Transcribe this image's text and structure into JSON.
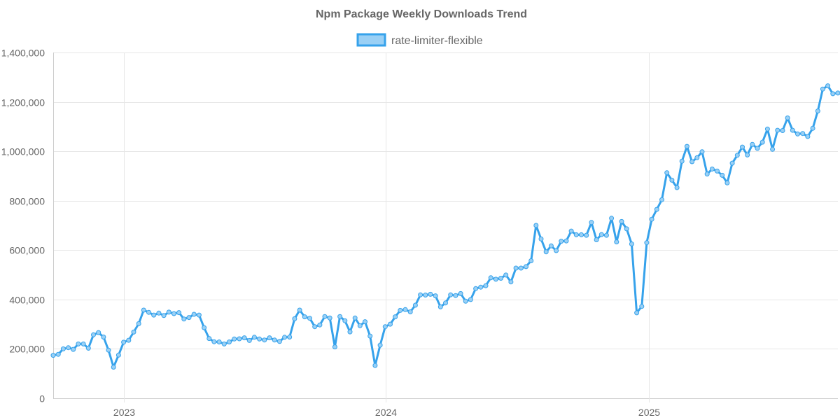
{
  "chart_data": {
    "type": "line",
    "title": "Npm Package Weekly Downloads Trend",
    "xlabel": "",
    "ylabel": "",
    "ylim": [
      0,
      1400000
    ],
    "y_ticks": [
      0,
      200000,
      400000,
      600000,
      800000,
      1000000,
      1200000,
      1400000
    ],
    "y_tick_labels": [
      "0",
      "200,000",
      "400,000",
      "600,000",
      "800,000",
      "1,000,000",
      "1,200,000",
      "1,400,000"
    ],
    "x_range": [
      "2022-09-25",
      "2025-09-21"
    ],
    "x_ticks": [
      "2023-01-01",
      "2024-01-01",
      "2025-01-01"
    ],
    "x_tick_labels": [
      "2023",
      "2024",
      "2025"
    ],
    "grid": true,
    "legend_position": "top-center",
    "series": [
      {
        "name": "rate-limiter-flexible",
        "color": "#36a2eb",
        "fill_color": "#9ad0f5",
        "points": [
          [
            "2022-09-25",
            174000
          ],
          [
            "2022-10-02",
            178000
          ],
          [
            "2022-10-09",
            200000
          ],
          [
            "2022-10-16",
            205000
          ],
          [
            "2022-10-23",
            198000
          ],
          [
            "2022-10-30",
            220000
          ],
          [
            "2022-11-06",
            220000
          ],
          [
            "2022-11-13",
            203000
          ],
          [
            "2022-11-20",
            257000
          ],
          [
            "2022-11-27",
            266000
          ],
          [
            "2022-12-04",
            248000
          ],
          [
            "2022-12-11",
            195000
          ],
          [
            "2022-12-18",
            126000
          ],
          [
            "2022-12-25",
            175000
          ],
          [
            "2023-01-01",
            227000
          ],
          [
            "2023-01-08",
            235000
          ],
          [
            "2023-01-15",
            268000
          ],
          [
            "2023-01-22",
            302000
          ],
          [
            "2023-01-29",
            357000
          ],
          [
            "2023-02-05",
            348000
          ],
          [
            "2023-02-12",
            337000
          ],
          [
            "2023-02-19",
            345000
          ],
          [
            "2023-02-26",
            335000
          ],
          [
            "2023-03-05",
            349000
          ],
          [
            "2023-03-12",
            343000
          ],
          [
            "2023-03-19",
            347000
          ],
          [
            "2023-03-26",
            321000
          ],
          [
            "2023-04-02",
            327000
          ],
          [
            "2023-04-09",
            340000
          ],
          [
            "2023-04-16",
            337000
          ],
          [
            "2023-04-23",
            286000
          ],
          [
            "2023-04-30",
            242000
          ],
          [
            "2023-05-07",
            229000
          ],
          [
            "2023-05-14",
            228000
          ],
          [
            "2023-05-21",
            220000
          ],
          [
            "2023-05-28",
            228000
          ],
          [
            "2023-06-04",
            240000
          ],
          [
            "2023-06-11",
            241000
          ],
          [
            "2023-06-18",
            245000
          ],
          [
            "2023-06-25",
            234000
          ],
          [
            "2023-07-02",
            247000
          ],
          [
            "2023-07-09",
            240000
          ],
          [
            "2023-07-16",
            236000
          ],
          [
            "2023-07-23",
            245000
          ],
          [
            "2023-07-30",
            236000
          ],
          [
            "2023-08-06",
            230000
          ],
          [
            "2023-08-13",
            247000
          ],
          [
            "2023-08-20",
            248000
          ],
          [
            "2023-08-27",
            322000
          ],
          [
            "2023-09-03",
            357000
          ],
          [
            "2023-09-10",
            330000
          ],
          [
            "2023-09-17",
            324000
          ],
          [
            "2023-09-24",
            290000
          ],
          [
            "2023-10-01",
            297000
          ],
          [
            "2023-10-08",
            331000
          ],
          [
            "2023-10-15",
            325000
          ],
          [
            "2023-10-22",
            208000
          ],
          [
            "2023-10-29",
            331000
          ],
          [
            "2023-11-05",
            314000
          ],
          [
            "2023-11-12",
            269000
          ],
          [
            "2023-11-19",
            325000
          ],
          [
            "2023-11-26",
            294000
          ],
          [
            "2023-12-03",
            310000
          ],
          [
            "2023-12-10",
            252000
          ],
          [
            "2023-12-17",
            133000
          ],
          [
            "2023-12-24",
            215000
          ],
          [
            "2023-12-31",
            290000
          ],
          [
            "2024-01-07",
            300000
          ],
          [
            "2024-01-14",
            330000
          ],
          [
            "2024-01-21",
            356000
          ],
          [
            "2024-01-28",
            359000
          ],
          [
            "2024-02-04",
            350000
          ],
          [
            "2024-02-11",
            377000
          ],
          [
            "2024-02-18",
            419000
          ],
          [
            "2024-02-25",
            418000
          ],
          [
            "2024-03-03",
            421000
          ],
          [
            "2024-03-10",
            415000
          ],
          [
            "2024-03-17",
            370000
          ],
          [
            "2024-03-24",
            386000
          ],
          [
            "2024-03-31",
            419000
          ],
          [
            "2024-04-07",
            416000
          ],
          [
            "2024-04-14",
            424000
          ],
          [
            "2024-04-21",
            393000
          ],
          [
            "2024-04-28",
            400000
          ],
          [
            "2024-05-05",
            444000
          ],
          [
            "2024-05-12",
            450000
          ],
          [
            "2024-05-19",
            456000
          ],
          [
            "2024-05-26",
            488000
          ],
          [
            "2024-06-02",
            482000
          ],
          [
            "2024-06-09",
            486000
          ],
          [
            "2024-06-16",
            499000
          ],
          [
            "2024-06-23",
            471000
          ],
          [
            "2024-06-30",
            527000
          ],
          [
            "2024-07-07",
            527000
          ],
          [
            "2024-07-14",
            533000
          ],
          [
            "2024-07-21",
            557000
          ],
          [
            "2024-07-28",
            700000
          ],
          [
            "2024-08-04",
            645000
          ],
          [
            "2024-08-11",
            593000
          ],
          [
            "2024-08-18",
            617000
          ],
          [
            "2024-08-25",
            598000
          ],
          [
            "2024-09-01",
            636000
          ],
          [
            "2024-09-08",
            637000
          ],
          [
            "2024-09-15",
            677000
          ],
          [
            "2024-09-22",
            662000
          ],
          [
            "2024-09-29",
            662000
          ],
          [
            "2024-10-06",
            660000
          ],
          [
            "2024-10-13",
            712000
          ],
          [
            "2024-10-20",
            642000
          ],
          [
            "2024-10-27",
            663000
          ],
          [
            "2024-11-03",
            660000
          ],
          [
            "2024-11-10",
            729000
          ],
          [
            "2024-11-17",
            633000
          ],
          [
            "2024-11-24",
            716000
          ],
          [
            "2024-12-01",
            686000
          ],
          [
            "2024-12-08",
            625000
          ],
          [
            "2024-12-15",
            346000
          ],
          [
            "2024-12-22",
            372000
          ],
          [
            "2024-12-29",
            630000
          ],
          [
            "2025-01-05",
            725000
          ],
          [
            "2025-01-12",
            765000
          ],
          [
            "2025-01-19",
            804000
          ],
          [
            "2025-01-26",
            913000
          ],
          [
            "2025-02-02",
            883000
          ],
          [
            "2025-02-09",
            853000
          ],
          [
            "2025-02-16",
            960000
          ],
          [
            "2025-02-23",
            1020000
          ],
          [
            "2025-03-02",
            958000
          ],
          [
            "2025-03-09",
            974000
          ],
          [
            "2025-03-16",
            998000
          ],
          [
            "2025-03-23",
            908000
          ],
          [
            "2025-03-30",
            928000
          ],
          [
            "2025-04-06",
            920000
          ],
          [
            "2025-04-13",
            903000
          ],
          [
            "2025-04-20",
            872000
          ],
          [
            "2025-04-27",
            952000
          ],
          [
            "2025-05-04",
            984000
          ],
          [
            "2025-05-11",
            1017000
          ],
          [
            "2025-05-18",
            985000
          ],
          [
            "2025-05-25",
            1028000
          ],
          [
            "2025-06-01",
            1012000
          ],
          [
            "2025-06-08",
            1037000
          ],
          [
            "2025-06-15",
            1090000
          ],
          [
            "2025-06-22",
            1008000
          ],
          [
            "2025-06-29",
            1085000
          ],
          [
            "2025-07-06",
            1084000
          ],
          [
            "2025-07-13",
            1135000
          ],
          [
            "2025-07-20",
            1085000
          ],
          [
            "2025-07-27",
            1070000
          ],
          [
            "2025-08-03",
            1072000
          ],
          [
            "2025-08-10",
            1060000
          ],
          [
            "2025-08-17",
            1093000
          ],
          [
            "2025-08-24",
            1163000
          ],
          [
            "2025-08-31",
            1252000
          ],
          [
            "2025-09-07",
            1265000
          ],
          [
            "2025-09-14",
            1233000
          ],
          [
            "2025-09-21",
            1236000
          ]
        ]
      }
    ]
  }
}
